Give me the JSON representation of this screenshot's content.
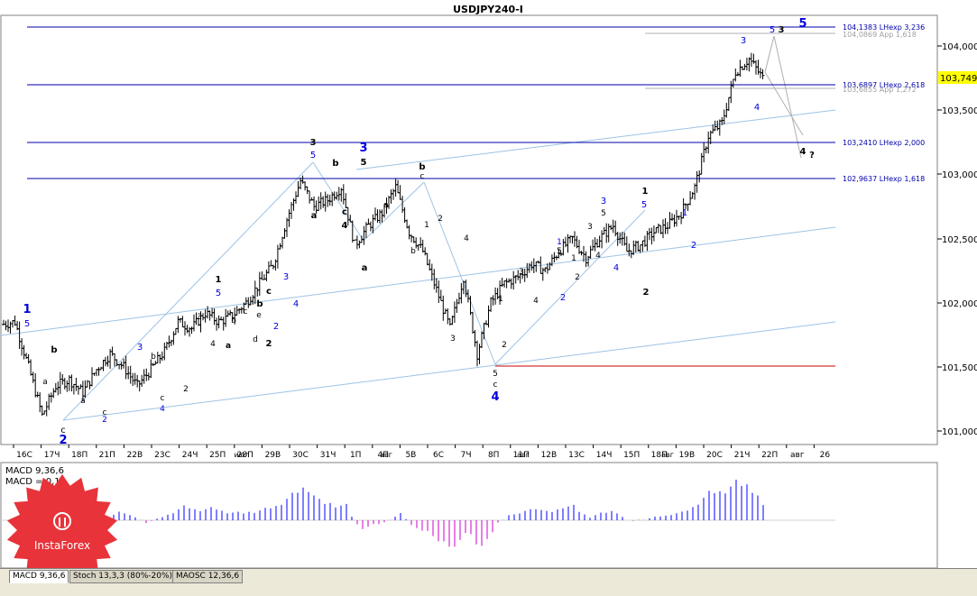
{
  "window": {
    "title": "USDJPY240-I"
  },
  "price_axis": {
    "labels": [
      "104,000",
      "103,500",
      "103,000",
      "102,500",
      "102,000",
      "101,500",
      "101,000"
    ],
    "current_price": "103,749"
  },
  "time_axis": {
    "labels": [
      "16С",
      "17Ч",
      "18П",
      "21П",
      "22В",
      "23С",
      "24Ч",
      "25П",
      "28П",
      "29В",
      "30С",
      "31Ч",
      "1П",
      "4П",
      "5В",
      "6С",
      "7Ч",
      "8П",
      "11П",
      "12В",
      "13С",
      "14Ч",
      "15П",
      "18П",
      "19В",
      "20С",
      "21Ч",
      "22П",
      "авг",
      "26"
    ],
    "overlaps": [
      "июл",
      "авг",
      "авг",
      "авг"
    ]
  },
  "levels": [
    {
      "label": "104,1383 LHexp 3,236",
      "color": "#0000aa"
    },
    {
      "label": "104,0869 App 1,618",
      "color": "#a0a0a0"
    },
    {
      "label": "103,6897 LHexp 2,618",
      "color": "#0000aa"
    },
    {
      "label": "103,6855 App 1,272",
      "color": "#a0a0a0"
    },
    {
      "label": "103,2410 LHexp 2,000",
      "color": "#0000aa"
    },
    {
      "label": "102,9637 LHexp 1,618",
      "color": "#0000aa"
    }
  ],
  "wave_labels": [
    {
      "t": "5",
      "c": "#0000dd",
      "bold": true
    },
    {
      "t": "3",
      "c": "#000000",
      "bold": true
    },
    {
      "t": "5",
      "c": "#0000dd",
      "bold": false
    },
    {
      "t": "3",
      "c": "#0000dd",
      "bold": false
    },
    {
      "t": "4",
      "c": "#0000dd",
      "bold": false
    },
    {
      "t": "4",
      "c": "#000000",
      "bold": true
    },
    {
      "t": "?",
      "c": "#000000",
      "bold": true
    },
    {
      "t": "1",
      "c": "#0000dd",
      "bold": true
    },
    {
      "t": "5",
      "c": "#0000dd",
      "bold": false
    },
    {
      "t": "b",
      "c": "#000000",
      "bold": true
    },
    {
      "t": "a",
      "c": "#000000",
      "bold": false
    },
    {
      "t": "c",
      "c": "#000000",
      "bold": false
    },
    {
      "t": "2",
      "c": "#0000dd",
      "bold": true
    },
    {
      "t": "3",
      "c": "#0000dd",
      "bold": false
    },
    {
      "t": "a",
      "c": "#000000",
      "bold": false
    },
    {
      "t": "c",
      "c": "#000000",
      "bold": false
    },
    {
      "t": "2",
      "c": "#0000dd",
      "bold": false
    },
    {
      "t": "b",
      "c": "#000000",
      "bold": false
    },
    {
      "t": "c",
      "c": "#000000",
      "bold": false
    },
    {
      "t": "4",
      "c": "#0000dd",
      "bold": false
    },
    {
      "t": "2",
      "c": "#000000",
      "bold": false
    },
    {
      "t": "3",
      "c": "#000000",
      "bold": false
    },
    {
      "t": "4",
      "c": "#000000",
      "bold": false
    },
    {
      "t": "1",
      "c": "#000000",
      "bold": true
    },
    {
      "t": "5",
      "c": "#0000dd",
      "bold": false
    },
    {
      "t": "a",
      "c": "#000000",
      "bold": true
    },
    {
      "t": "b",
      "c": "#000000",
      "bold": false
    },
    {
      "t": "c",
      "c": "#000000",
      "bold": false
    },
    {
      "t": "e",
      "c": "#000000",
      "bold": false
    },
    {
      "t": "d",
      "c": "#000000",
      "bold": false
    },
    {
      "t": "b",
      "c": "#000000",
      "bold": true
    },
    {
      "t": "c",
      "c": "#000000",
      "bold": true
    },
    {
      "t": "2",
      "c": "#000000",
      "bold": true
    },
    {
      "t": "2",
      "c": "#0000dd",
      "bold": false
    },
    {
      "t": "3",
      "c": "#0000dd",
      "bold": false
    },
    {
      "t": "4",
      "c": "#0000dd",
      "bold": false
    },
    {
      "t": "3",
      "c": "#000000",
      "bold": true
    },
    {
      "t": "5",
      "c": "#0000dd",
      "bold": false
    },
    {
      "t": "a",
      "c": "#000000",
      "bold": true
    },
    {
      "t": "b",
      "c": "#000000",
      "bold": true
    },
    {
      "t": "c",
      "c": "#000000",
      "bold": true
    },
    {
      "t": "4",
      "c": "#000000",
      "bold": true
    },
    {
      "t": "3",
      "c": "#0000dd",
      "bold": true
    },
    {
      "t": "5",
      "c": "#000000",
      "bold": true
    },
    {
      "t": "a",
      "c": "#000000",
      "bold": true
    },
    {
      "t": "a",
      "c": "#000000",
      "bold": false
    },
    {
      "t": "b",
      "c": "#000000",
      "bold": false
    },
    {
      "t": "b",
      "c": "#000000",
      "bold": true
    },
    {
      "t": "c",
      "c": "#000000",
      "bold": false
    },
    {
      "t": "1",
      "c": "#000000",
      "bold": false
    },
    {
      "t": "2",
      "c": "#000000",
      "bold": false
    },
    {
      "t": "3",
      "c": "#000000",
      "bold": false
    },
    {
      "t": "4",
      "c": "#000000",
      "bold": false
    },
    {
      "t": "5",
      "c": "#000000",
      "bold": false
    },
    {
      "t": "c",
      "c": "#000000",
      "bold": false
    },
    {
      "t": "4",
      "c": "#0000dd",
      "bold": true
    },
    {
      "t": "1",
      "c": "#000000",
      "bold": false
    },
    {
      "t": "2",
      "c": "#000000",
      "bold": false
    },
    {
      "t": "3",
      "c": "#000000",
      "bold": false
    },
    {
      "t": "4",
      "c": "#000000",
      "bold": false
    },
    {
      "t": "1",
      "c": "#0000dd",
      "bold": false
    },
    {
      "t": "5",
      "c": "#000000",
      "bold": false
    },
    {
      "t": "2",
      "c": "#0000dd",
      "bold": false
    },
    {
      "t": "1",
      "c": "#000000",
      "bold": false
    },
    {
      "t": "2",
      "c": "#000000",
      "bold": false
    },
    {
      "t": "3",
      "c": "#000000",
      "bold": false
    },
    {
      "t": "4",
      "c": "#000000",
      "bold": false
    },
    {
      "t": "3",
      "c": "#0000dd",
      "bold": false
    },
    {
      "t": "5",
      "c": "#000000",
      "bold": false
    },
    {
      "t": "4",
      "c": "#0000dd",
      "bold": false
    },
    {
      "t": "1",
      "c": "#000000",
      "bold": true
    },
    {
      "t": "5",
      "c": "#0000dd",
      "bold": false
    },
    {
      "t": "2",
      "c": "#000000",
      "bold": true
    },
    {
      "t": "1",
      "c": "#0000dd",
      "bold": false
    },
    {
      "t": "2",
      "c": "#0000dd",
      "bold": false
    }
  ],
  "indicator": {
    "macd_label": "MACD 9,36,6",
    "macd_value": "MACD = 0,11"
  },
  "logo": {
    "brand": "InstaForex"
  },
  "tabs": [
    "MACD 9,36,6",
    "Stoch 13,3,3 (80%-20%)",
    "MAOSC 12,36,6"
  ],
  "colors": {
    "bull_histogram": "#0000ff",
    "bear_histogram": "#cc00cc",
    "level_line": "#0000aa",
    "channel_line": "#9dc3e6",
    "support_line": "#cc0000",
    "current_price_bg": "#ffff00"
  },
  "chart_data": {
    "type": "candlestick",
    "title": "USDJPY240-I",
    "ylim": [
      100.9,
      104.3
    ],
    "approx_closes": [
      101.83,
      101.85,
      101.5,
      101.12,
      101.35,
      101.4,
      101.3,
      101.48,
      101.6,
      101.5,
      101.35,
      101.48,
      101.62,
      101.85,
      101.8,
      101.92,
      101.85,
      101.9,
      102.0,
      102.15,
      102.3,
      102.65,
      102.95,
      102.75,
      102.8,
      102.9,
      102.45,
      102.6,
      102.7,
      102.9,
      102.55,
      102.4,
      102.1,
      101.8,
      102.2,
      101.6,
      102.0,
      102.15,
      102.2,
      102.3,
      102.25,
      102.4,
      102.5,
      102.35,
      102.5,
      102.6,
      102.4,
      102.45,
      102.55,
      102.6,
      102.7,
      102.9,
      103.3,
      103.4,
      103.8,
      103.9,
      103.75
    ],
    "horizontal_levels": [
      104.1383,
      104.0869,
      103.6897,
      103.6855,
      103.241,
      102.9637
    ]
  }
}
